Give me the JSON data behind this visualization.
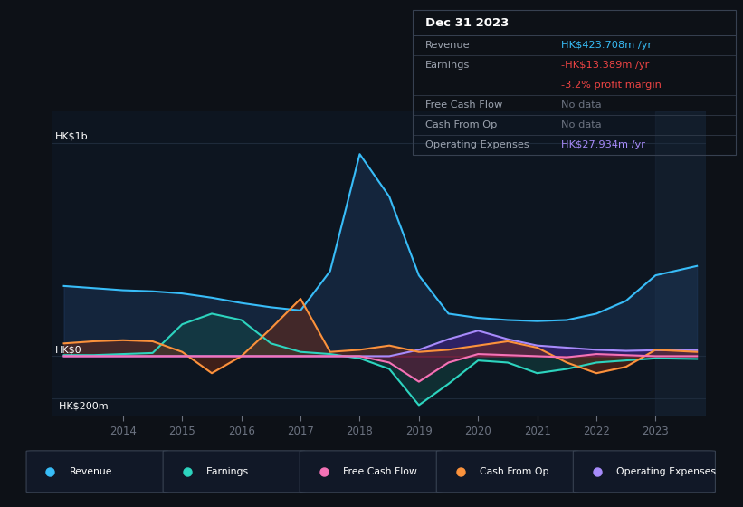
{
  "bg_color": "#0d1117",
  "chart_bg": "#0d1520",
  "panel_bg": "#111827",
  "grid_color": "#1e2a3a",
  "text_color": "#ffffff",
  "muted_color": "#6b7280",
  "ylabel_top": "HK$1b",
  "ylabel_zero": "HK$0",
  "ylabel_bottom": "-HK$200m",
  "x_labels": [
    "2014",
    "2015",
    "2016",
    "2017",
    "2018",
    "2019",
    "2020",
    "2021",
    "2022",
    "2023"
  ],
  "x_ticks": [
    2014,
    2015,
    2016,
    2017,
    2018,
    2019,
    2020,
    2021,
    2022,
    2023
  ],
  "ylim": [
    -280,
    1150
  ],
  "series": {
    "Revenue": {
      "color": "#38bdf8",
      "fill_color": "#1e3a5f",
      "x": [
        2013.0,
        2013.5,
        2014.0,
        2014.5,
        2015.0,
        2015.5,
        2016.0,
        2016.5,
        2017.0,
        2017.5,
        2018.0,
        2018.5,
        2019.0,
        2019.5,
        2020.0,
        2020.5,
        2021.0,
        2021.5,
        2022.0,
        2022.5,
        2023.0,
        2023.7
      ],
      "y": [
        330,
        320,
        310,
        305,
        295,
        275,
        250,
        230,
        215,
        400,
        950,
        750,
        380,
        200,
        180,
        170,
        165,
        170,
        200,
        260,
        380,
        424
      ]
    },
    "Earnings": {
      "color": "#2dd4bf",
      "fill_color": "#134e4a",
      "x": [
        2013.0,
        2013.5,
        2014.0,
        2014.5,
        2015.0,
        2015.5,
        2016.0,
        2016.5,
        2017.0,
        2017.5,
        2018.0,
        2018.5,
        2019.0,
        2019.5,
        2020.0,
        2020.5,
        2021.0,
        2021.5,
        2022.0,
        2022.5,
        2023.0,
        2023.7
      ],
      "y": [
        5,
        5,
        10,
        15,
        150,
        200,
        170,
        60,
        20,
        10,
        -10,
        -60,
        -230,
        -130,
        -20,
        -30,
        -80,
        -60,
        -30,
        -20,
        -10,
        -13
      ]
    },
    "Free Cash Flow": {
      "color": "#f472b6",
      "fill_color": "#831843",
      "x": [
        2013.0,
        2013.5,
        2014.0,
        2014.5,
        2015.0,
        2015.5,
        2016.0,
        2016.5,
        2017.0,
        2017.5,
        2018.0,
        2018.5,
        2019.0,
        2019.5,
        2020.0,
        2020.5,
        2021.0,
        2021.5,
        2022.0,
        2022.5,
        2023.0,
        2023.7
      ],
      "y": [
        0,
        0,
        0,
        0,
        0,
        0,
        0,
        0,
        0,
        0,
        0,
        -30,
        -120,
        -30,
        10,
        5,
        0,
        -5,
        10,
        5,
        0,
        0
      ]
    },
    "Cash From Op": {
      "color": "#fb923c",
      "fill_color": "#7c2d12",
      "x": [
        2013.0,
        2013.5,
        2014.0,
        2014.5,
        2015.0,
        2015.5,
        2016.0,
        2016.5,
        2017.0,
        2017.5,
        2018.0,
        2018.5,
        2019.0,
        2019.5,
        2020.0,
        2020.5,
        2021.0,
        2021.5,
        2022.0,
        2022.5,
        2023.0,
        2023.7
      ],
      "y": [
        60,
        70,
        75,
        70,
        20,
        -80,
        0,
        130,
        270,
        20,
        30,
        50,
        20,
        30,
        50,
        70,
        40,
        -30,
        -80,
        -50,
        30,
        20
      ]
    },
    "Operating Expenses": {
      "color": "#a78bfa",
      "fill_color": "#4c1d95",
      "x": [
        2013.0,
        2013.5,
        2014.0,
        2014.5,
        2015.0,
        2015.5,
        2016.0,
        2016.5,
        2017.0,
        2017.5,
        2018.0,
        2018.5,
        2019.0,
        2019.5,
        2020.0,
        2020.5,
        2021.0,
        2021.5,
        2022.0,
        2022.5,
        2023.0,
        2023.7
      ],
      "y": [
        0,
        0,
        0,
        0,
        0,
        0,
        0,
        0,
        0,
        0,
        0,
        0,
        30,
        80,
        120,
        80,
        50,
        40,
        30,
        25,
        28,
        28
      ]
    }
  },
  "info_box": {
    "title": "Dec 31 2023",
    "rows": [
      {
        "label": "Revenue",
        "value": "HK$423.708m /yr",
        "value_color": "#38bdf8"
      },
      {
        "label": "Earnings",
        "value": "-HK$13.389m /yr",
        "value_color": "#ef4444"
      },
      {
        "label": "",
        "value": "-3.2% profit margin",
        "value_color": "#ef4444"
      },
      {
        "label": "Free Cash Flow",
        "value": "No data",
        "value_color": "#6b7280"
      },
      {
        "label": "Cash From Op",
        "value": "No data",
        "value_color": "#6b7280"
      },
      {
        "label": "Operating Expenses",
        "value": "HK$27.934m /yr",
        "value_color": "#a78bfa"
      }
    ]
  },
  "legend": [
    {
      "label": "Revenue",
      "color": "#38bdf8"
    },
    {
      "label": "Earnings",
      "color": "#2dd4bf"
    },
    {
      "label": "Free Cash Flow",
      "color": "#f472b6"
    },
    {
      "label": "Cash From Op",
      "color": "#fb923c"
    },
    {
      "label": "Operating Expenses",
      "color": "#a78bfa"
    }
  ],
  "shade_right_color": "#1e2d42",
  "divider_color": "#374151",
  "label_color": "#9ca3af"
}
